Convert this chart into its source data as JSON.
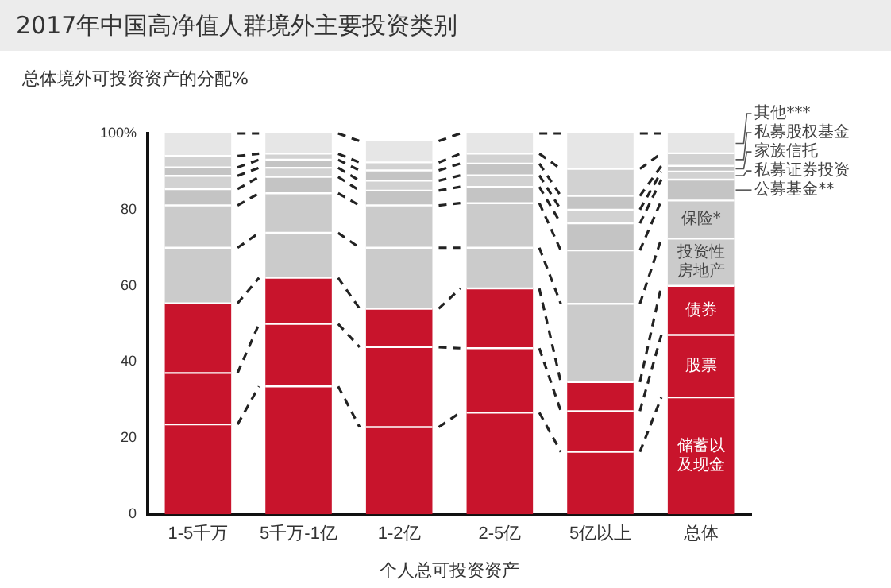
{
  "chart_data": {
    "type": "bar",
    "title": "2017年中国高净值人群境外主要投资类别",
    "ylabel": "总体境外可投资资产的分配%",
    "xlabel": "个人总可投资资产",
    "categories": [
      "1-5千万",
      "5千万-1亿",
      "1-2亿",
      "2-5亿",
      "5亿以上",
      "总体"
    ],
    "stacked": true,
    "grid": false,
    "legend": "right",
    "ylim": [
      0,
      100
    ],
    "yticks": [
      0,
      20,
      40,
      60,
      80,
      {
        "value": 100,
        "label": "100%"
      }
    ],
    "series": [
      {
        "name": "储蓄以及现金",
        "color": "#c8142c",
        "values": [
          23.6,
          33.6,
          22.9,
          26.7,
          16.4,
          30.7
        ]
      },
      {
        "name": "股票",
        "color": "#c8142c",
        "values": [
          13.5,
          16.4,
          21,
          16.9,
          10.7,
          16.4
        ]
      },
      {
        "name": "债券",
        "color": "#c8142c",
        "values": [
          18.3,
          12.1,
          10.1,
          15.7,
          7.6,
          12.9
        ]
      },
      {
        "name": "投资性房地产",
        "color": "#cbcbcb",
        "values": [
          14.6,
          11.8,
          16,
          10.7,
          20.6,
          12.4
        ]
      },
      {
        "name": "保险*",
        "color": "#cbcbcb",
        "values": [
          11.1,
          10.4,
          11.1,
          11.7,
          14,
          10
        ]
      },
      {
        "name": "公募基金**",
        "color": "#c4c4c4",
        "values": [
          4.3,
          4.3,
          3.9,
          4.3,
          7.1,
          5.5
        ]
      },
      {
        "name": "私募证券投资",
        "color": "#d2d2d2",
        "values": [
          3.5,
          2.4,
          2.6,
          3,
          3.6,
          2.1
        ]
      },
      {
        "name": "家族信托",
        "color": "#c4c4c4",
        "values": [
          2.2,
          2.1,
          2.7,
          3.1,
          3.6,
          1.5
        ]
      },
      {
        "name": "私募股权基金",
        "color": "#d2d2d2",
        "values": [
          3,
          1.6,
          2.1,
          2.6,
          7.1,
          3.3
        ]
      },
      {
        "name": "其他***",
        "color": "#e6e6e6",
        "values": [
          5.9,
          5.3,
          5.6,
          5.3,
          9.3,
          5.2
        ]
      }
    ]
  }
}
